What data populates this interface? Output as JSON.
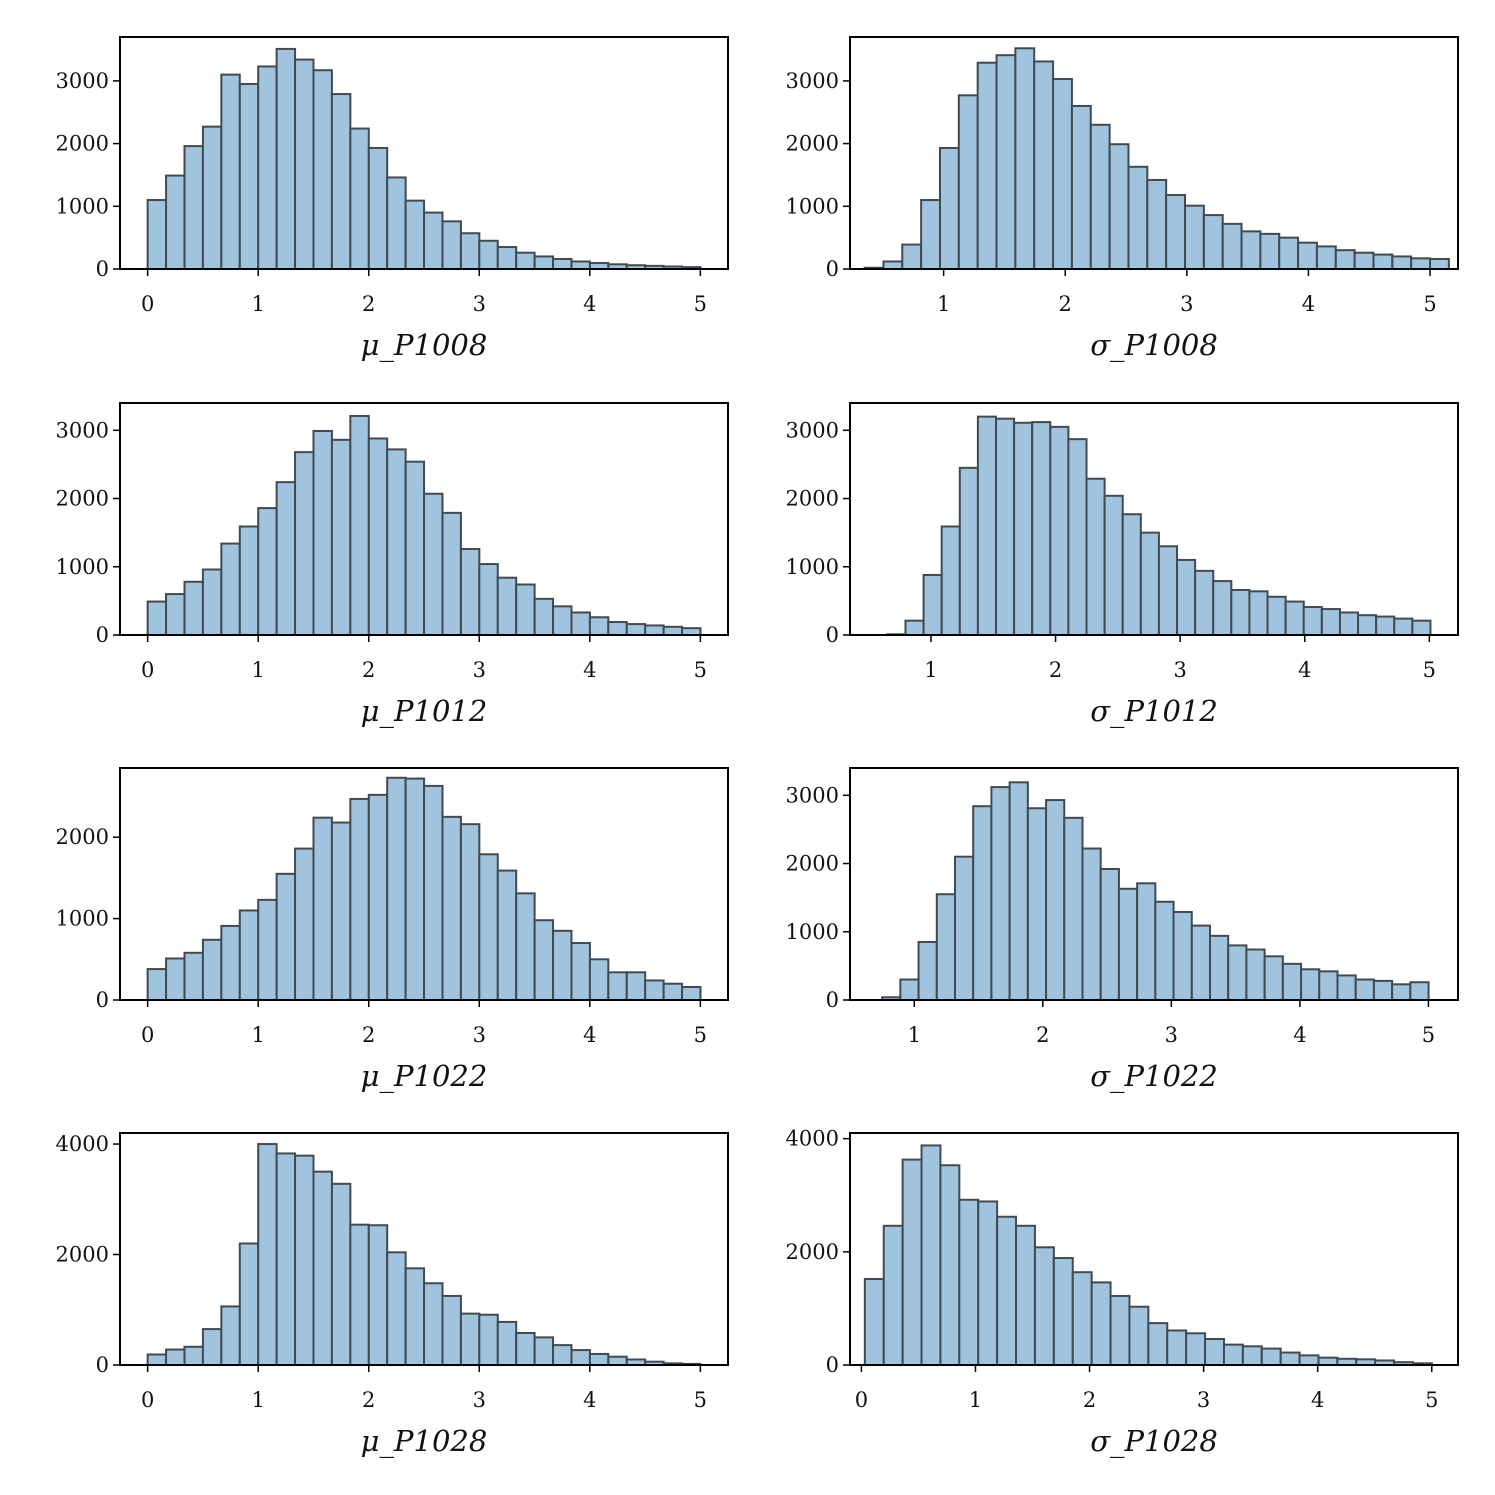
{
  "colors": {
    "bar_fill": "#a1c4de",
    "bar_edge": "#3f4a52",
    "axes": "#000000"
  },
  "chart_data": [
    {
      "type": "bar",
      "title": "",
      "xlabel": "μ_P1008",
      "ylabel": "",
      "xlim": [
        -0.25,
        5.25
      ],
      "ylim": [
        0,
        3700
      ],
      "bin_start": 0.0,
      "bin_width": 0.1667,
      "xticks": [
        0,
        1,
        2,
        3,
        4,
        5
      ],
      "yticks": [
        0,
        1000,
        2000,
        3000
      ],
      "values": [
        1100,
        1490,
        1960,
        2270,
        3100,
        2950,
        3230,
        3510,
        3340,
        3170,
        2790,
        2240,
        1930,
        1460,
        1090,
        900,
        760,
        570,
        450,
        350,
        260,
        200,
        160,
        120,
        95,
        75,
        60,
        50,
        40,
        30
      ]
    },
    {
      "type": "bar",
      "title": "",
      "xlabel": "σ_P1008",
      "ylabel": "",
      "xlim": [
        0.23,
        5.23
      ],
      "ylim": [
        0,
        3700
      ],
      "bin_start": 0.35,
      "bin_width": 0.155,
      "xticks": [
        1,
        2,
        3,
        4,
        5
      ],
      "yticks": [
        0,
        1000,
        2000,
        3000
      ],
      "values": [
        20,
        120,
        390,
        1100,
        1930,
        2770,
        3290,
        3410,
        3520,
        3310,
        3030,
        2600,
        2300,
        1990,
        1630,
        1420,
        1180,
        1010,
        860,
        720,
        600,
        560,
        500,
        420,
        360,
        300,
        260,
        230,
        200,
        170,
        160
      ]
    },
    {
      "type": "bar",
      "title": "",
      "xlabel": "μ_P1012",
      "ylabel": "",
      "xlim": [
        -0.25,
        5.25
      ],
      "ylim": [
        0,
        3400
      ],
      "bin_start": 0.0,
      "bin_width": 0.1667,
      "xticks": [
        0,
        1,
        2,
        3,
        4,
        5
      ],
      "yticks": [
        0,
        1000,
        2000,
        3000
      ],
      "values": [
        490,
        600,
        780,
        960,
        1340,
        1590,
        1860,
        2240,
        2680,
        2990,
        2860,
        3210,
        2880,
        2720,
        2540,
        2070,
        1790,
        1260,
        1040,
        840,
        740,
        530,
        420,
        330,
        260,
        190,
        160,
        140,
        120,
        100
      ]
    },
    {
      "type": "bar",
      "title": "",
      "xlabel": "σ_P1012",
      "ylabel": "",
      "xlim": [
        0.35,
        5.23
      ],
      "ylim": [
        0,
        3400
      ],
      "bin_start": 0.65,
      "bin_width": 0.1453,
      "xticks": [
        1,
        2,
        3,
        4,
        5
      ],
      "yticks": [
        0,
        1000,
        2000,
        3000
      ],
      "values": [
        10,
        210,
        880,
        1590,
        2450,
        3200,
        3170,
        3110,
        3120,
        3050,
        2870,
        2290,
        2040,
        1770,
        1500,
        1300,
        1100,
        940,
        790,
        660,
        640,
        560,
        490,
        410,
        380,
        330,
        290,
        270,
        240,
        210
      ]
    },
    {
      "type": "bar",
      "title": "",
      "xlabel": "μ_P1022",
      "ylabel": "",
      "xlim": [
        -0.25,
        5.25
      ],
      "ylim": [
        0,
        2850
      ],
      "bin_start": 0.0,
      "bin_width": 0.1667,
      "xticks": [
        0,
        1,
        2,
        3,
        4,
        5
      ],
      "yticks": [
        0,
        1000,
        2000
      ],
      "values": [
        380,
        510,
        580,
        740,
        910,
        1100,
        1230,
        1550,
        1860,
        2240,
        2180,
        2470,
        2520,
        2730,
        2720,
        2630,
        2250,
        2160,
        1790,
        1590,
        1310,
        980,
        850,
        700,
        500,
        340,
        340,
        240,
        200,
        160
      ]
    },
    {
      "type": "bar",
      "title": "",
      "xlabel": "σ_P1022",
      "ylabel": "",
      "xlim": [
        0.5,
        5.23
      ],
      "ylim": [
        0,
        3400
      ],
      "bin_start": 0.75,
      "bin_width": 0.1417,
      "xticks": [
        1,
        2,
        3,
        4,
        5
      ],
      "yticks": [
        0,
        1000,
        2000,
        3000
      ],
      "values": [
        40,
        300,
        850,
        1550,
        2100,
        2840,
        3120,
        3190,
        2810,
        2930,
        2670,
        2220,
        1920,
        1630,
        1710,
        1440,
        1290,
        1090,
        940,
        800,
        740,
        640,
        530,
        450,
        420,
        360,
        300,
        280,
        230,
        260
      ]
    },
    {
      "type": "bar",
      "title": "",
      "xlabel": "μ_P1028",
      "ylabel": "",
      "xlim": [
        -0.25,
        5.25
      ],
      "ylim": [
        0,
        4200
      ],
      "bin_start": 0.0,
      "bin_width": 0.1667,
      "xticks": [
        0,
        1,
        2,
        3,
        4,
        5
      ],
      "yticks": [
        0,
        2000,
        4000
      ],
      "values": [
        190,
        280,
        330,
        650,
        1060,
        2200,
        4000,
        3830,
        3790,
        3500,
        3280,
        2540,
        2530,
        2040,
        1750,
        1480,
        1250,
        930,
        910,
        780,
        580,
        500,
        360,
        270,
        200,
        150,
        100,
        60,
        30,
        20
      ]
    },
    {
      "type": "bar",
      "title": "",
      "xlabel": "σ_P1028",
      "ylabel": "",
      "xlim": [
        -0.1,
        5.23
      ],
      "ylim": [
        0,
        4100
      ],
      "bin_start": 0.03,
      "bin_width": 0.1657,
      "xticks": [
        0,
        1,
        2,
        3,
        4,
        5
      ],
      "yticks": [
        0,
        2000,
        4000
      ],
      "values": [
        1520,
        2460,
        3630,
        3880,
        3530,
        2920,
        2890,
        2620,
        2460,
        2080,
        1890,
        1640,
        1460,
        1220,
        1030,
        740,
        610,
        560,
        460,
        360,
        330,
        290,
        220,
        170,
        130,
        110,
        100,
        80,
        50,
        30
      ]
    }
  ]
}
